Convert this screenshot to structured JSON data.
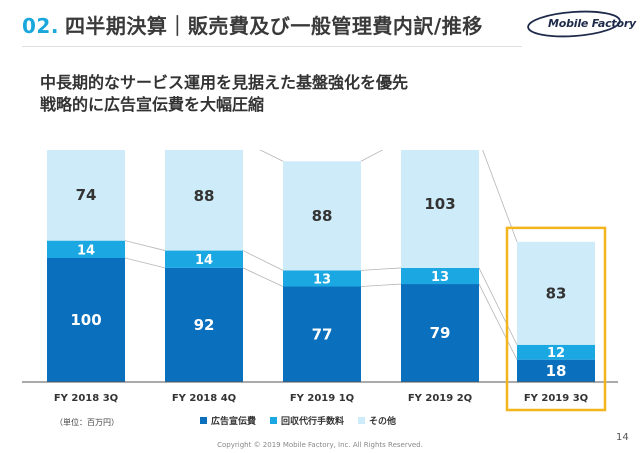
{
  "header": {
    "section_number": "02.",
    "title": "四半期決算｜販売費及び一般管理費内訳/推移",
    "logo_text": "Mobile Factory"
  },
  "subtitle": {
    "line1": "中長期的なサービス運用を見据えた基盤強化を優先",
    "line2": "戦略的に広告宣伝費を大幅圧縮"
  },
  "unit_note": "（単位：百万円）",
  "copyright": "Copyright © 2019 Mobile Factory, Inc. All Rights Reserved.",
  "page_number": "14",
  "colors": {
    "accent": "#1aa7dc",
    "series_ad": "#0a6fbd",
    "series_fee": "#1ba8e2",
    "series_other": "#cdebf9",
    "highlight": "#f2b51b"
  },
  "chart_data": {
    "type": "bar",
    "stacked": true,
    "categories": [
      "FY 2018 3Q",
      "FY 2018 4Q",
      "FY 2019 1Q",
      "FY 2019 2Q",
      "FY 2019 3Q"
    ],
    "series": [
      {
        "name": "広告宣伝費",
        "values": [
          100,
          92,
          77,
          79,
          18
        ]
      },
      {
        "name": "回収代行手数料",
        "values": [
          14,
          14,
          13,
          13,
          12
        ]
      },
      {
        "name": "その他",
        "values": [
          74,
          88,
          88,
          103,
          83
        ]
      }
    ],
    "highlighted_category": "FY 2019 3Q",
    "legend_position": "bottom",
    "grid": false
  }
}
